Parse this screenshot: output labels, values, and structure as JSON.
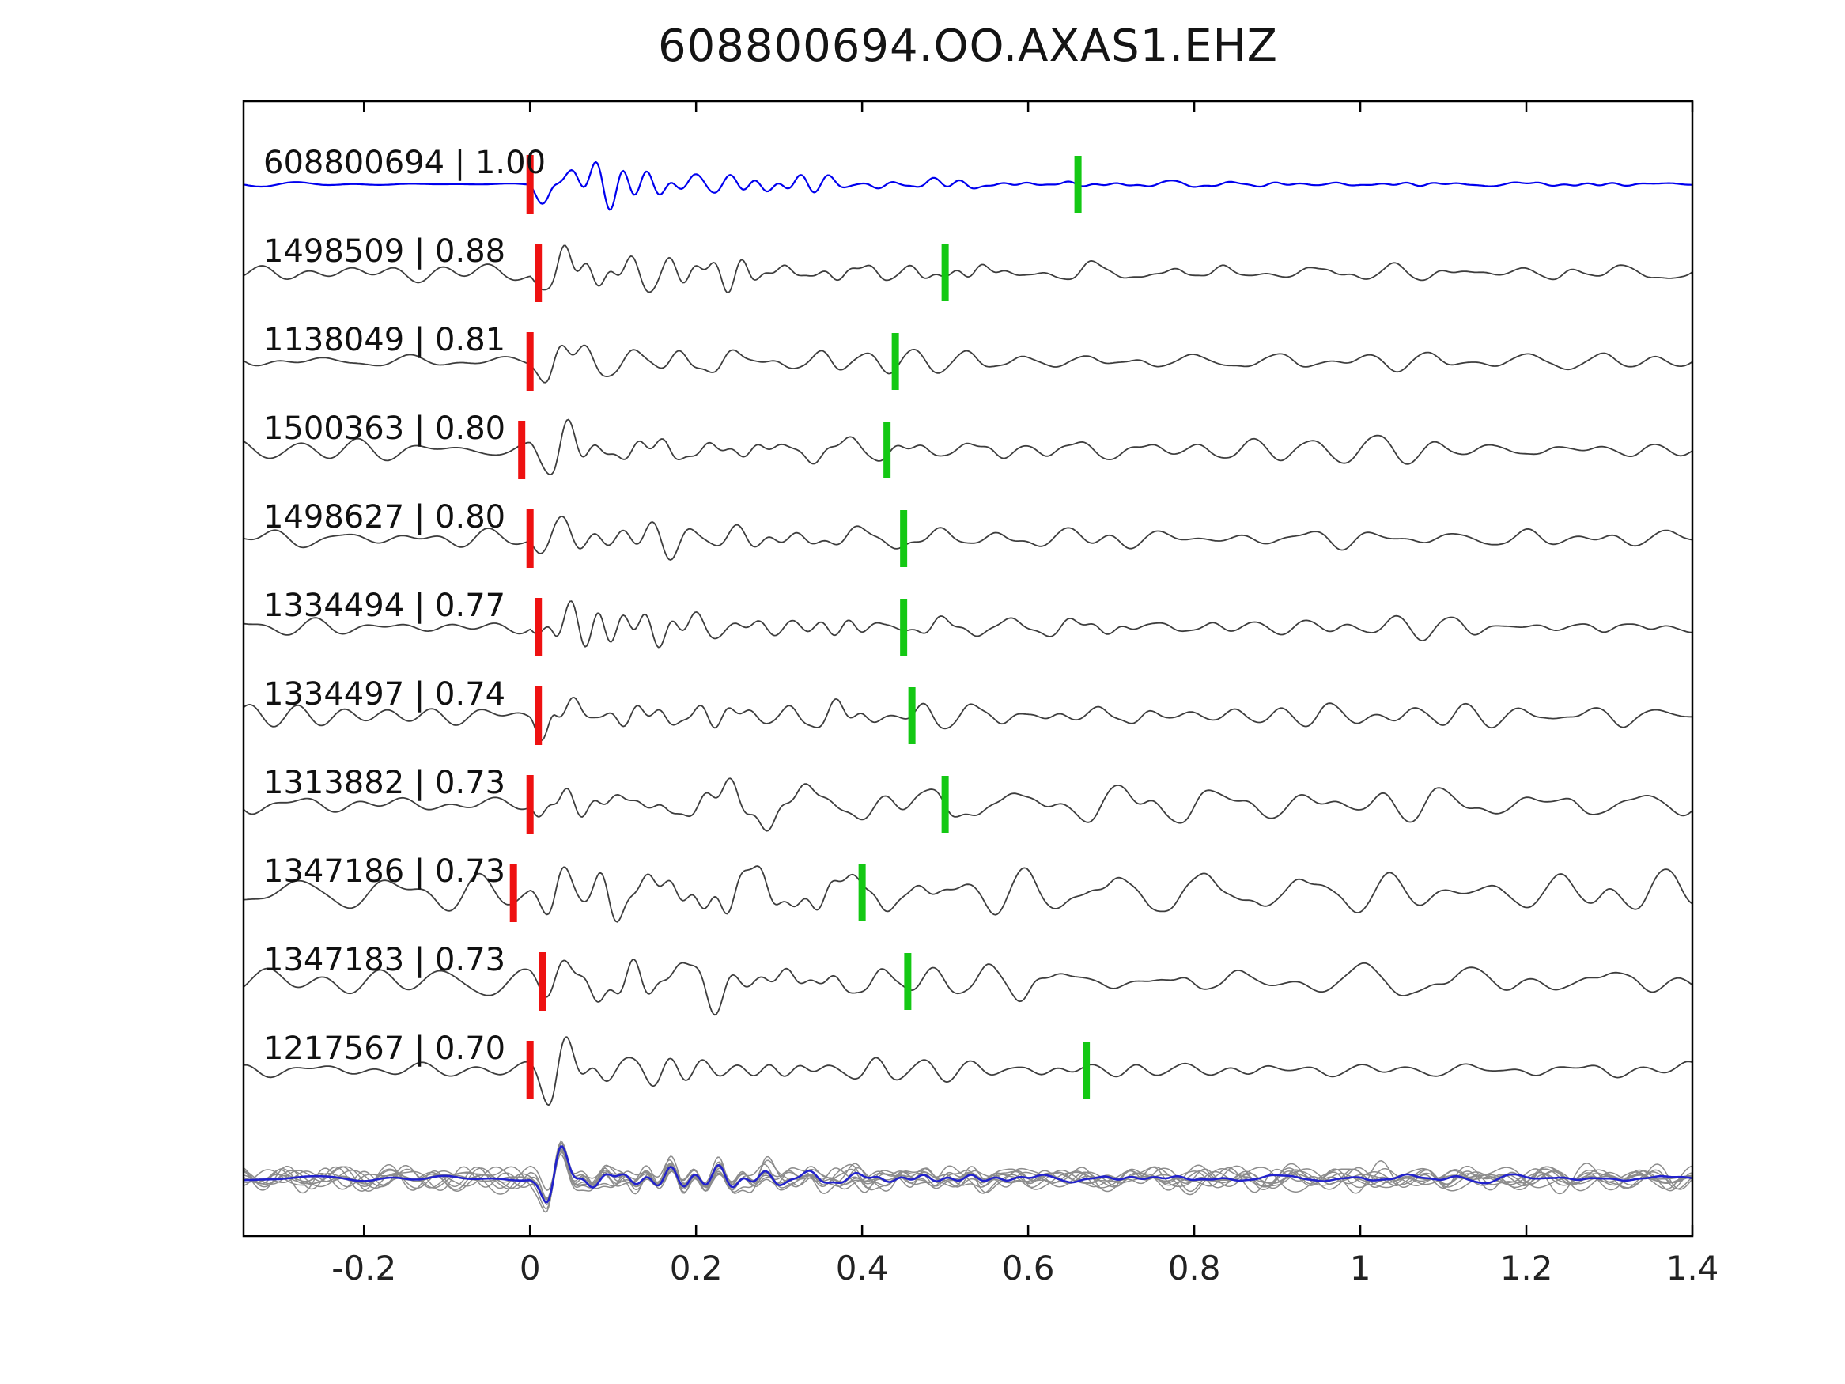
{
  "page": {
    "title": "608800694.OO.AXAS1.EHZ"
  },
  "chart_data": {
    "type": "line",
    "title": "608800694.OO.AXAS1.EHZ",
    "xlabel": "",
    "ylabel": "",
    "xlim": [
      -0.345,
      1.4
    ],
    "xticks": [
      -0.2,
      0,
      0.2,
      0.4,
      0.6,
      0.8,
      1,
      1.2,
      1.4
    ],
    "xtick_labels": [
      "-0.2",
      "0",
      "0.2",
      "0.4",
      "0.6",
      "0.8",
      "1",
      "1.2",
      "1.4"
    ],
    "grid": false,
    "legend_position": "none",
    "colors": {
      "template_trace": "#0000ee",
      "detection_trace": "#3d3d3d",
      "pick_red": "#ee1111",
      "pick_green": "#14c814",
      "stack_member": "#8c8c8c",
      "stack_line": "#2222cc",
      "axis": "#000000",
      "text": "#111111"
    },
    "traces": [
      {
        "id": "608800694",
        "cc": "1.00",
        "label": "608800694 | 1.00",
        "pick_red": 0.0,
        "pick_green": 0.66,
        "is_template": true
      },
      {
        "id": "1498509",
        "cc": "0.88",
        "label": "1498509 | 0.88",
        "pick_red": 0.01,
        "pick_green": 0.5,
        "is_template": false
      },
      {
        "id": "1138049",
        "cc": "0.81",
        "label": "1138049 | 0.81",
        "pick_red": 0.0,
        "pick_green": 0.44,
        "is_template": false
      },
      {
        "id": "1500363",
        "cc": "0.80",
        "label": "1500363 | 0.80",
        "pick_red": -0.01,
        "pick_green": 0.43,
        "is_template": false
      },
      {
        "id": "1498627",
        "cc": "0.80",
        "label": "1498627 | 0.80",
        "pick_red": 0.0,
        "pick_green": 0.45,
        "is_template": false
      },
      {
        "id": "1334494",
        "cc": "0.77",
        "label": "1334494 | 0.77",
        "pick_red": 0.01,
        "pick_green": 0.45,
        "is_template": false
      },
      {
        "id": "1334497",
        "cc": "0.74",
        "label": "1334497 | 0.74",
        "pick_red": 0.01,
        "pick_green": 0.46,
        "is_template": false
      },
      {
        "id": "1313882",
        "cc": "0.73",
        "label": "1313882 | 0.73",
        "pick_red": 0.0,
        "pick_green": 0.5,
        "is_template": false
      },
      {
        "id": "1347186",
        "cc": "0.73",
        "label": "1347186 | 0.73",
        "pick_red": -0.02,
        "pick_green": 0.4,
        "is_template": false
      },
      {
        "id": "1347183",
        "cc": "0.73",
        "label": "1347183 | 0.73",
        "pick_red": 0.015,
        "pick_green": 0.455,
        "is_template": false
      },
      {
        "id": "1217567",
        "cc": "0.70",
        "label": "1217567 | 0.70",
        "pick_red": 0.0,
        "pick_green": 0.67,
        "is_template": false
      }
    ],
    "stack": {
      "label": "",
      "n_members": 9,
      "has_picks": false
    }
  }
}
